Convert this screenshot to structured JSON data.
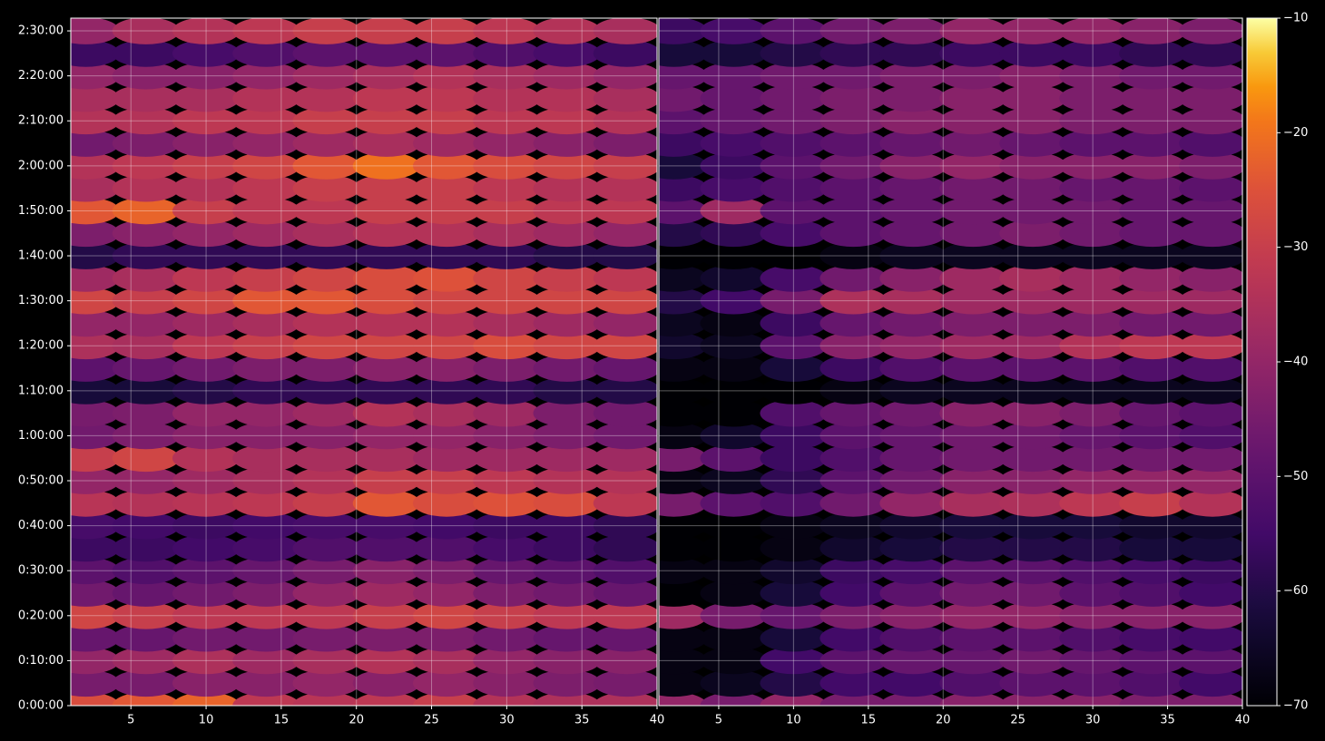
{
  "chart_data": [
    {
      "type": "heatmap",
      "colormap": "inferno",
      "grid": true,
      "x": [
        2,
        6,
        10,
        14,
        18,
        22,
        26,
        30,
        34,
        38
      ],
      "y": [
        0,
        300,
        600,
        900,
        1200,
        1500,
        1800,
        2100,
        2400,
        2700,
        3000,
        3300,
        3600,
        3900,
        4200,
        4500,
        4800,
        5100,
        5400,
        5700,
        6000,
        6300,
        6600,
        6900,
        7200,
        7500,
        7800,
        8100,
        8400,
        8700,
        9000
      ],
      "xlim": [
        1,
        40
      ],
      "xticks": [
        5,
        10,
        15,
        20,
        25,
        30,
        35,
        40
      ],
      "ylim": [
        0,
        9170
      ],
      "yticks": [
        {
          "value": 0,
          "label": "0:00:00"
        },
        {
          "value": 600,
          "label": "0:10:00"
        },
        {
          "value": 1200,
          "label": "0:20:00"
        },
        {
          "value": 1800,
          "label": "0:30:00"
        },
        {
          "value": 2400,
          "label": "0:40:00"
        },
        {
          "value": 3000,
          "label": "0:50:00"
        },
        {
          "value": 3600,
          "label": "1:00:00"
        },
        {
          "value": 4200,
          "label": "1:10:00"
        },
        {
          "value": 4800,
          "label": "1:20:00"
        },
        {
          "value": 5400,
          "label": "1:30:00"
        },
        {
          "value": 6000,
          "label": "1:40:00"
        },
        {
          "value": 6600,
          "label": "1:50:00"
        },
        {
          "value": 7200,
          "label": "2:00:00"
        },
        {
          "value": 7800,
          "label": "2:10:00"
        },
        {
          "value": 8400,
          "label": "2:20:00"
        },
        {
          "value": 9000,
          "label": "2:30:00"
        }
      ],
      "values": [
        [
          -26,
          -24,
          -22,
          -32,
          -33,
          -32,
          -30,
          -34,
          -35,
          -35
        ],
        [
          -45,
          -45,
          -42,
          -42,
          -40,
          -42,
          -40,
          -42,
          -44,
          -45
        ],
        [
          -40,
          -38,
          -35,
          -38,
          -36,
          -34,
          -36,
          -40,
          -42,
          -42
        ],
        [
          -48,
          -48,
          -46,
          -46,
          -45,
          -44,
          -44,
          -46,
          -48,
          -48
        ],
        [
          -28,
          -30,
          -32,
          -32,
          -32,
          -30,
          -28,
          -30,
          -32,
          -32
        ],
        [
          -46,
          -48,
          -46,
          -44,
          -40,
          -38,
          -40,
          -44,
          -46,
          -48
        ],
        [
          -50,
          -52,
          -50,
          -48,
          -45,
          -42,
          -44,
          -48,
          -50,
          -52
        ],
        [
          -56,
          -56,
          -55,
          -54,
          -52,
          -52,
          -52,
          -54,
          -56,
          -58
        ],
        [
          -54,
          -55,
          -56,
          -55,
          -54,
          -54,
          -55,
          -56,
          -56,
          -58
        ],
        [
          -33,
          -34,
          -33,
          -32,
          -30,
          -24,
          -26,
          -25,
          -26,
          -32
        ],
        [
          -40,
          -40,
          -38,
          -36,
          -34,
          -30,
          -30,
          -32,
          -34,
          -34
        ],
        [
          -30,
          -28,
          -34,
          -36,
          -36,
          -36,
          -38,
          -38,
          -38,
          -38
        ],
        [
          -46,
          -44,
          -42,
          -42,
          -42,
          -40,
          -40,
          -42,
          -44,
          -46
        ],
        [
          -45,
          -44,
          -40,
          -40,
          -38,
          -34,
          -36,
          -38,
          -44,
          -46
        ],
        [
          -62,
          -62,
          -60,
          -58,
          -58,
          -58,
          -58,
          -58,
          -60,
          -60
        ],
        [
          -50,
          -48,
          -46,
          -44,
          -44,
          -42,
          -42,
          -44,
          -46,
          -48
        ],
        [
          -35,
          -36,
          -32,
          -30,
          -28,
          -28,
          -28,
          -26,
          -28,
          -28
        ],
        [
          -40,
          -40,
          -38,
          -36,
          -34,
          -34,
          -34,
          -36,
          -38,
          -40
        ],
        [
          -28,
          -30,
          -28,
          -24,
          -24,
          -26,
          -28,
          -28,
          -28,
          -28
        ],
        [
          -38,
          -36,
          -32,
          -30,
          -28,
          -26,
          -25,
          -28,
          -30,
          -32
        ],
        [
          -60,
          -58,
          -58,
          -58,
          -58,
          -58,
          -58,
          -58,
          -60,
          -60
        ],
        [
          -44,
          -42,
          -40,
          -38,
          -36,
          -34,
          -34,
          -36,
          -38,
          -40
        ],
        [
          -24,
          -22,
          -30,
          -32,
          -32,
          -30,
          -30,
          -30,
          -32,
          -32
        ],
        [
          -36,
          -34,
          -34,
          -32,
          -30,
          -30,
          -30,
          -32,
          -34,
          -34
        ],
        [
          -34,
          -32,
          -30,
          -28,
          -24,
          -20,
          -24,
          -26,
          -28,
          -30
        ],
        [
          -46,
          -44,
          -42,
          -40,
          -38,
          -36,
          -38,
          -40,
          -42,
          -44
        ],
        [
          -34,
          -34,
          -32,
          -32,
          -30,
          -30,
          -30,
          -32,
          -32,
          -34
        ],
        [
          -36,
          -36,
          -36,
          -34,
          -34,
          -32,
          -32,
          -34,
          -34,
          -36
        ],
        [
          -40,
          -42,
          -42,
          -40,
          -38,
          -36,
          -34,
          -36,
          -38,
          -40
        ],
        [
          -56,
          -56,
          -54,
          -52,
          -50,
          -50,
          -50,
          -52,
          -54,
          -56
        ],
        [
          -40,
          -36,
          -34,
          -32,
          -30,
          -30,
          -30,
          -32,
          -34,
          -36
        ]
      ]
    },
    {
      "type": "heatmap",
      "colormap": "inferno",
      "grid": true,
      "x": [
        2,
        6,
        10,
        14,
        18,
        22,
        26,
        30,
        34,
        38
      ],
      "y": [
        0,
        300,
        600,
        900,
        1200,
        1500,
        1800,
        2100,
        2400,
        2700,
        3000,
        3300,
        3600,
        3900,
        4200,
        4500,
        4800,
        5100,
        5400,
        5700,
        6000,
        6300,
        6600,
        6900,
        7200,
        7500,
        7800,
        8100,
        8400,
        8700,
        9000
      ],
      "xlim": [
        1,
        40
      ],
      "xticks": [
        5,
        10,
        15,
        20,
        25,
        30,
        35,
        40
      ],
      "ylim": [
        0,
        9170
      ],
      "yticks": [
        0,
        600,
        1200,
        1800,
        2400,
        3000,
        3600,
        4200,
        4800,
        5400,
        6000,
        6600,
        7200,
        7800,
        8400,
        9000
      ],
      "colorbar": {
        "lim": [
          -70,
          -10
        ],
        "ticks": [
          {
            "value": -70,
            "label": "−70"
          },
          {
            "value": -60,
            "label": "−60"
          },
          {
            "value": -50,
            "label": "−50"
          },
          {
            "value": -40,
            "label": "−40"
          },
          {
            "value": -30,
            "label": "−30"
          },
          {
            "value": -20,
            "label": "−20"
          },
          {
            "value": -10,
            "label": "−10"
          }
        ]
      },
      "values": [
        [
          -40,
          -45,
          -40,
          -45,
          -45,
          -42,
          -42,
          -42,
          -44,
          -44
        ],
        [
          -68,
          -66,
          -60,
          -55,
          -55,
          -52,
          -50,
          -50,
          -52,
          -55
        ],
        [
          -68,
          -68,
          -55,
          -50,
          -48,
          -48,
          -46,
          -48,
          -50,
          -50
        ],
        [
          -68,
          -68,
          -62,
          -55,
          -52,
          -50,
          -50,
          -52,
          -54,
          -55
        ],
        [
          -38,
          -45,
          -48,
          -44,
          -42,
          -40,
          -40,
          -42,
          -42,
          -42
        ],
        [
          -70,
          -68,
          -62,
          -55,
          -50,
          -46,
          -46,
          -50,
          -52,
          -55
        ],
        [
          -68,
          -68,
          -64,
          -56,
          -54,
          -50,
          -50,
          -52,
          -54,
          -56
        ],
        [
          -70,
          -70,
          -68,
          -64,
          -62,
          -60,
          -60,
          -60,
          -62,
          -62
        ],
        [
          -70,
          -70,
          -68,
          -66,
          -64,
          -62,
          -62,
          -62,
          -64,
          -64
        ],
        [
          -45,
          -50,
          -52,
          -46,
          -40,
          -36,
          -35,
          -32,
          -30,
          -34
        ],
        [
          -68,
          -66,
          -58,
          -50,
          -46,
          -42,
          -42,
          -40,
          -40,
          -40
        ],
        [
          -45,
          -50,
          -56,
          -52,
          -48,
          -46,
          -46,
          -46,
          -46,
          -46
        ],
        [
          -68,
          -64,
          -56,
          -50,
          -48,
          -46,
          -46,
          -48,
          -50,
          -52
        ],
        [
          -70,
          -70,
          -52,
          -48,
          -46,
          -42,
          -42,
          -44,
          -48,
          -50
        ],
        [
          -70,
          -70,
          -70,
          -68,
          -66,
          -66,
          -66,
          -66,
          -66,
          -66
        ],
        [
          -68,
          -68,
          -62,
          -56,
          -52,
          -50,
          -50,
          -50,
          -52,
          -52
        ],
        [
          -64,
          -66,
          -50,
          -42,
          -40,
          -38,
          -38,
          -34,
          -32,
          -32
        ],
        [
          -66,
          -68,
          -56,
          -48,
          -46,
          -44,
          -44,
          -44,
          -46,
          -46
        ],
        [
          -60,
          -55,
          -45,
          -35,
          -36,
          -38,
          -38,
          -38,
          -38,
          -38
        ],
        [
          -66,
          -64,
          -54,
          -46,
          -42,
          -38,
          -36,
          -38,
          -40,
          -42
        ],
        [
          -70,
          -70,
          -70,
          -68,
          -66,
          -66,
          -66,
          -66,
          -66,
          -66
        ],
        [
          -60,
          -58,
          -54,
          -50,
          -48,
          -46,
          -44,
          -46,
          -48,
          -48
        ],
        [
          -50,
          -38,
          -50,
          -50,
          -48,
          -46,
          -46,
          -46,
          -48,
          -48
        ],
        [
          -56,
          -54,
          -52,
          -50,
          -48,
          -46,
          -46,
          -48,
          -48,
          -50
        ],
        [
          -62,
          -56,
          -50,
          -46,
          -42,
          -40,
          -42,
          -42,
          -42,
          -44
        ],
        [
          -56,
          -54,
          -52,
          -50,
          -48,
          -46,
          -48,
          -50,
          -50,
          -52
        ],
        [
          -50,
          -48,
          -46,
          -44,
          -42,
          -42,
          -42,
          -44,
          -44,
          -44
        ],
        [
          -46,
          -48,
          -46,
          -44,
          -44,
          -42,
          -42,
          -44,
          -44,
          -44
        ],
        [
          -48,
          -48,
          -46,
          -46,
          -44,
          -44,
          -42,
          -44,
          -46,
          -46
        ],
        [
          -62,
          -62,
          -60,
          -58,
          -58,
          -56,
          -56,
          -56,
          -58,
          -58
        ],
        [
          -56,
          -54,
          -50,
          -46,
          -44,
          -40,
          -40,
          -40,
          -42,
          -44
        ]
      ]
    }
  ]
}
